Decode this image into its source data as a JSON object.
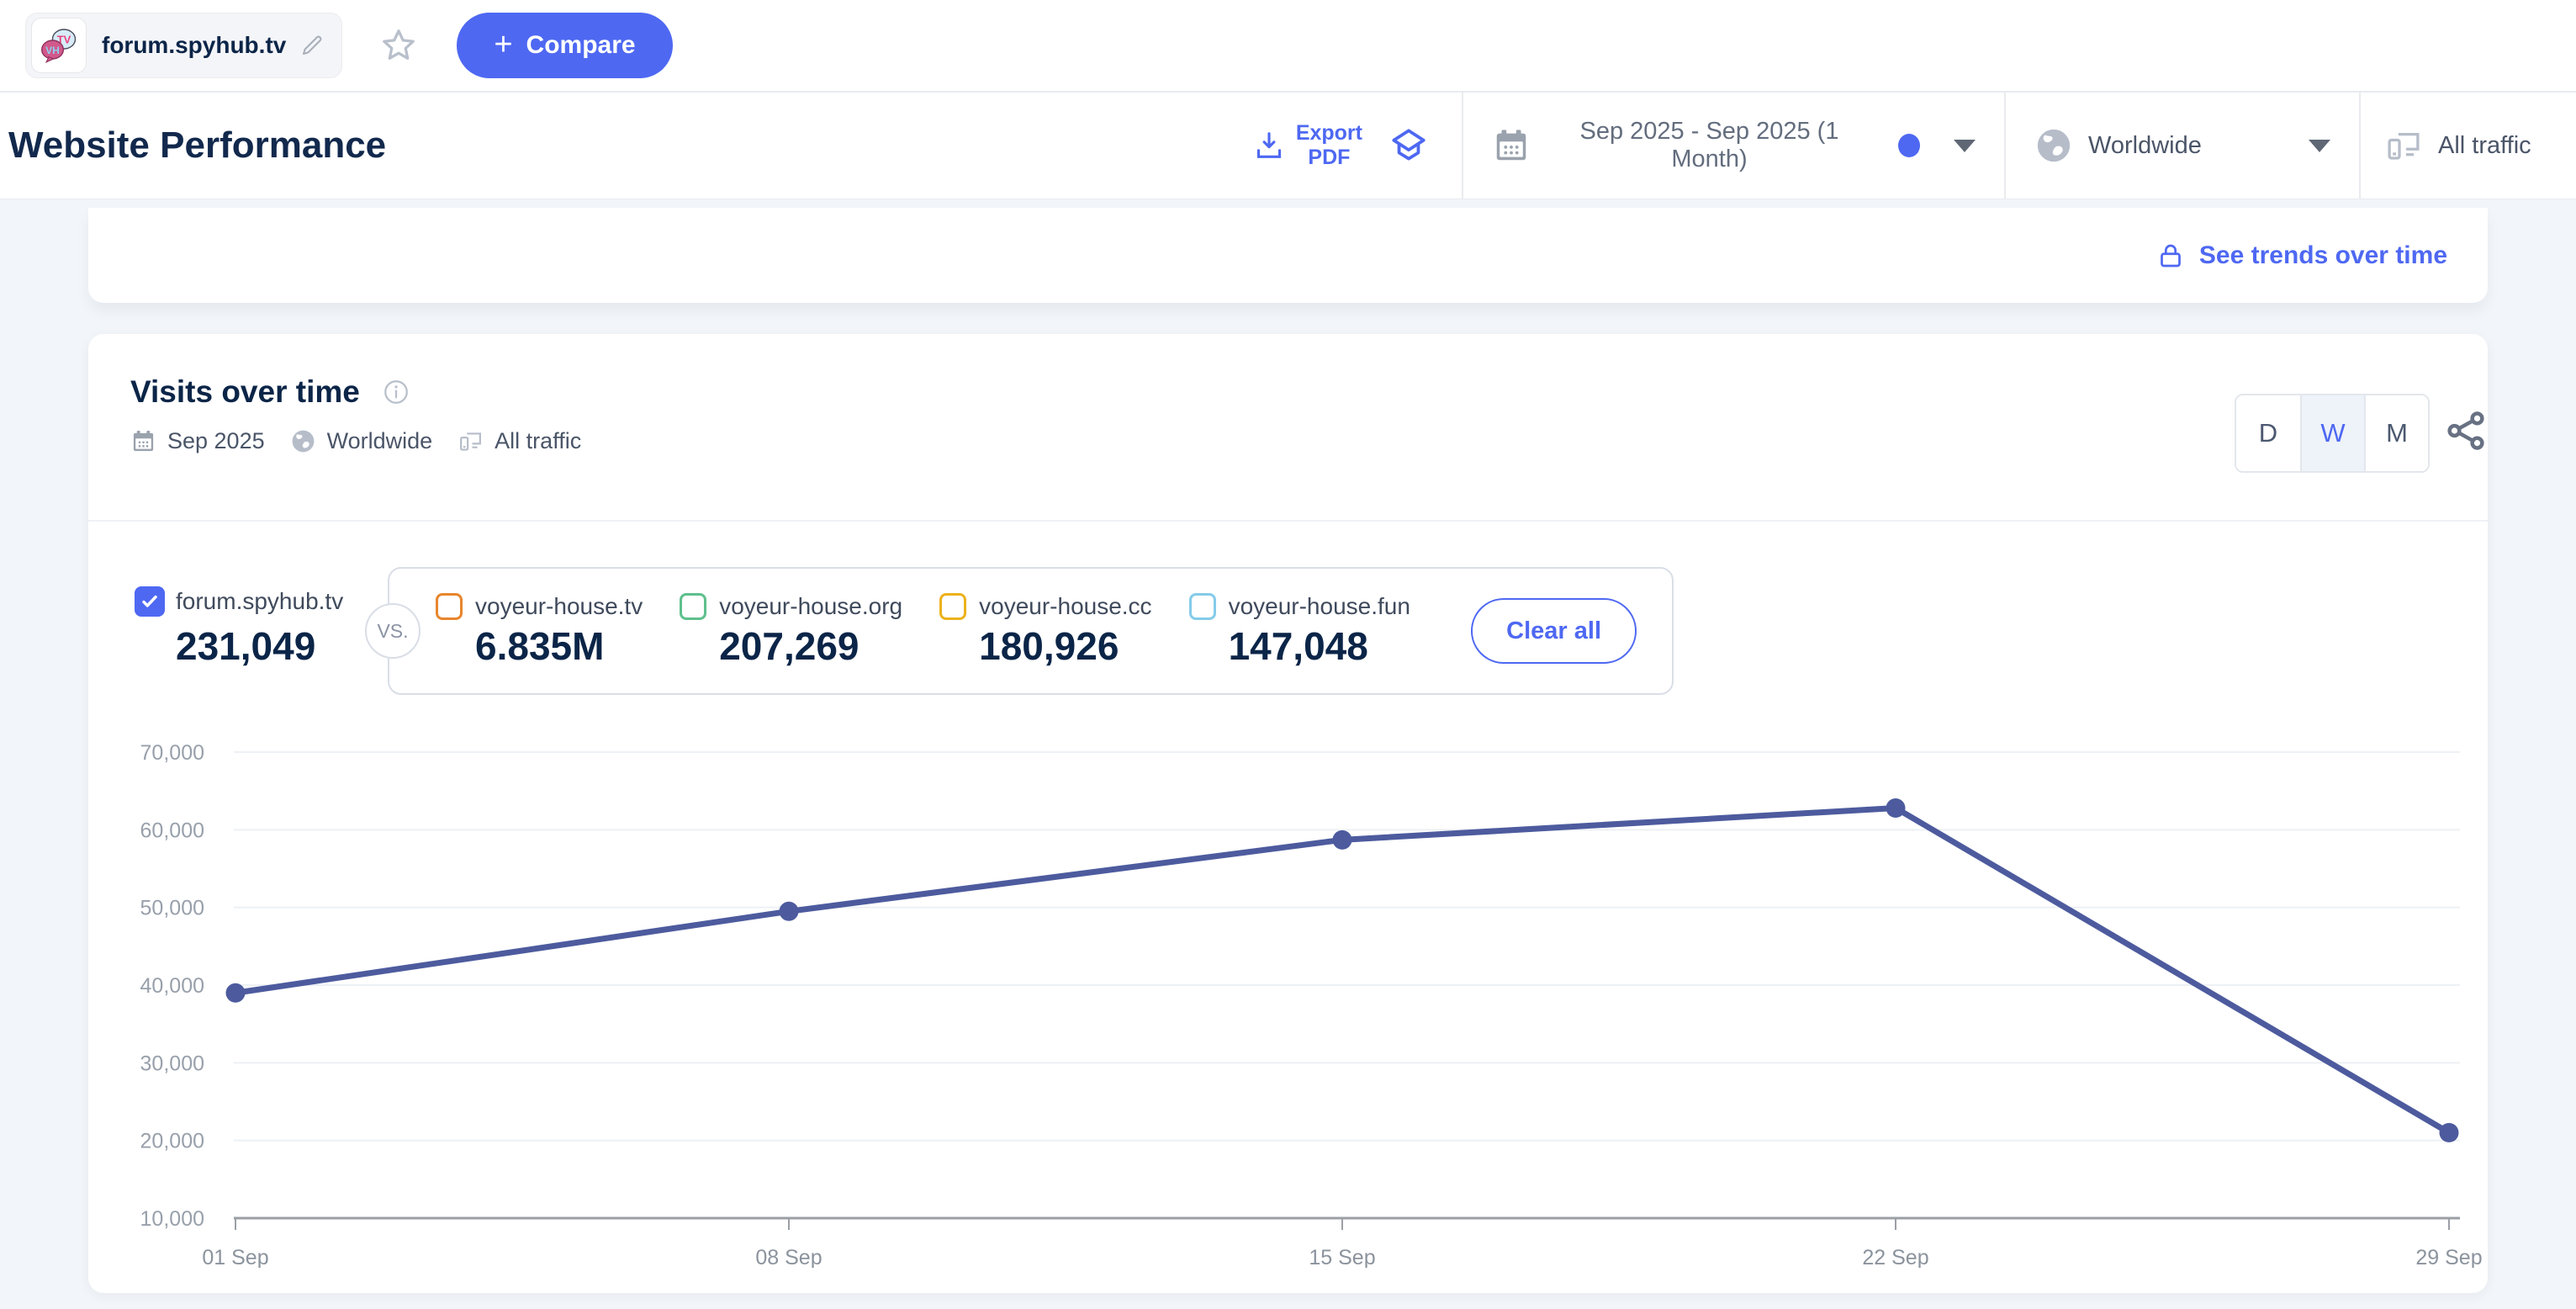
{
  "accent_color": "#4e68f2",
  "top_bar": {
    "site_name": "forum.spyhub.tv",
    "compare_plus": "+",
    "compare_label": "Compare"
  },
  "header": {
    "title": "Website Performance",
    "export_label": "Export\nPDF",
    "date_range": "Sep 2025 - Sep 2025 (1 Month)",
    "country": "Worldwide",
    "traffic": "All traffic"
  },
  "trends_card": {
    "see_trends_link": "See trends over time"
  },
  "visits_card": {
    "title": "Visits over time",
    "meta_date": "Sep 2025",
    "meta_country": "Worldwide",
    "meta_traffic": "All traffic",
    "granularity": {
      "options": [
        "D",
        "W",
        "M"
      ],
      "selected": "W"
    },
    "main_site": {
      "name": "forum.spyhub.tv",
      "value": "231,049",
      "checked": true,
      "color": "#4e68f2"
    },
    "vs_label": "VS.",
    "competitors": [
      {
        "name": "voyeur-house.tv",
        "value": "6.835M",
        "color": "#e8862d"
      },
      {
        "name": "voyeur-house.org",
        "value": "207,269",
        "color": "#5ec08d"
      },
      {
        "name": "voyeur-house.cc",
        "value": "180,926",
        "color": "#ecb21c"
      },
      {
        "name": "voyeur-house.fun",
        "value": "147,048",
        "color": "#85cbe9"
      }
    ],
    "clear_all": "Clear all"
  },
  "chart_data": {
    "type": "line",
    "title": "Visits over time",
    "x": [
      "01 Sep",
      "08 Sep",
      "15 Sep",
      "22 Sep",
      "29 Sep"
    ],
    "series": [
      {
        "name": "forum.spyhub.tv",
        "color": "#4d5b9e",
        "values": [
          39000,
          49500,
          58700,
          62800,
          21000
        ]
      }
    ],
    "ylim": [
      10000,
      70000
    ],
    "yticks": [
      10000,
      20000,
      30000,
      40000,
      50000,
      60000,
      70000
    ],
    "grid": true,
    "xlabel": "",
    "ylabel": ""
  }
}
